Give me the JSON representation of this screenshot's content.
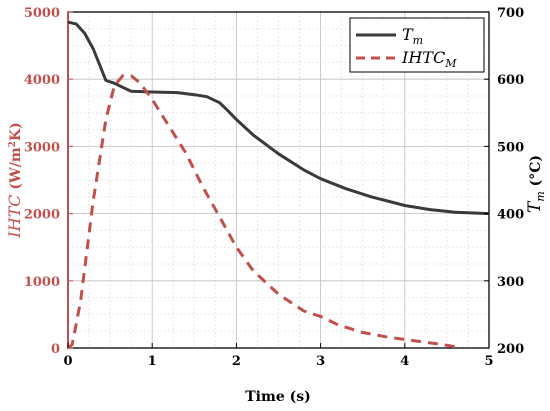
{
  "chart_data": {
    "type": "line",
    "xlabel": "Time (s)",
    "xlim": [
      0,
      5
    ],
    "x_ticks": [
      "0",
      "1",
      "2",
      "3",
      "4",
      "5"
    ],
    "y_left": {
      "label_main": "IHTC",
      "label_units": " (W/m",
      "label_sup": "2",
      "label_tail": "K)",
      "lim": [
        0,
        5000
      ],
      "ticks": [
        "0",
        "1000",
        "2000",
        "3000",
        "4000",
        "5000"
      ],
      "color": "#c0504d"
    },
    "y_right": {
      "label_main": "T",
      "label_sub": "m",
      "label_tail": " (°C)",
      "lim": [
        200,
        700
      ],
      "ticks": [
        "200",
        "300",
        "400",
        "500",
        "600",
        "700"
      ],
      "color": "#222222"
    },
    "legend": {
      "position": "top-right",
      "tm_label": "T",
      "tm_sub": "m",
      "ihtc_label": "IHTC",
      "ihtc_sub": "M"
    },
    "grid": true,
    "series": [
      {
        "name": "Tm",
        "axis": "right",
        "color": "#3a3a3a",
        "style": "solid",
        "x": [
          0,
          0.1,
          0.2,
          0.3,
          0.45,
          0.55,
          0.65,
          0.75,
          1.0,
          1.3,
          1.5,
          1.65,
          1.8,
          1.9,
          2.0,
          2.2,
          2.5,
          2.8,
          3.0,
          3.3,
          3.6,
          4.0,
          4.3,
          4.6,
          5.0
        ],
        "y": [
          685,
          682,
          668,
          645,
          598,
          594,
          588,
          582,
          581,
          580,
          577,
          574,
          565,
          553,
          540,
          517,
          489,
          465,
          452,
          437,
          425,
          412,
          406,
          402,
          400
        ]
      },
      {
        "name": "IHTC_M",
        "axis": "left",
        "color": "#c0504d",
        "style": "dashed",
        "x": [
          0,
          0.05,
          0.15,
          0.3,
          0.45,
          0.55,
          0.65,
          0.75,
          0.85,
          1.0,
          1.2,
          1.4,
          1.6,
          1.8,
          2.0,
          2.2,
          2.5,
          2.8,
          3.0,
          3.2,
          3.5,
          3.8,
          4.1,
          4.4,
          4.6
        ],
        "y": [
          0,
          50,
          700,
          2200,
          3400,
          3900,
          4050,
          4050,
          3950,
          3700,
          3300,
          2900,
          2400,
          1950,
          1500,
          1150,
          800,
          550,
          470,
          350,
          230,
          160,
          110,
          60,
          20
        ]
      }
    ]
  }
}
